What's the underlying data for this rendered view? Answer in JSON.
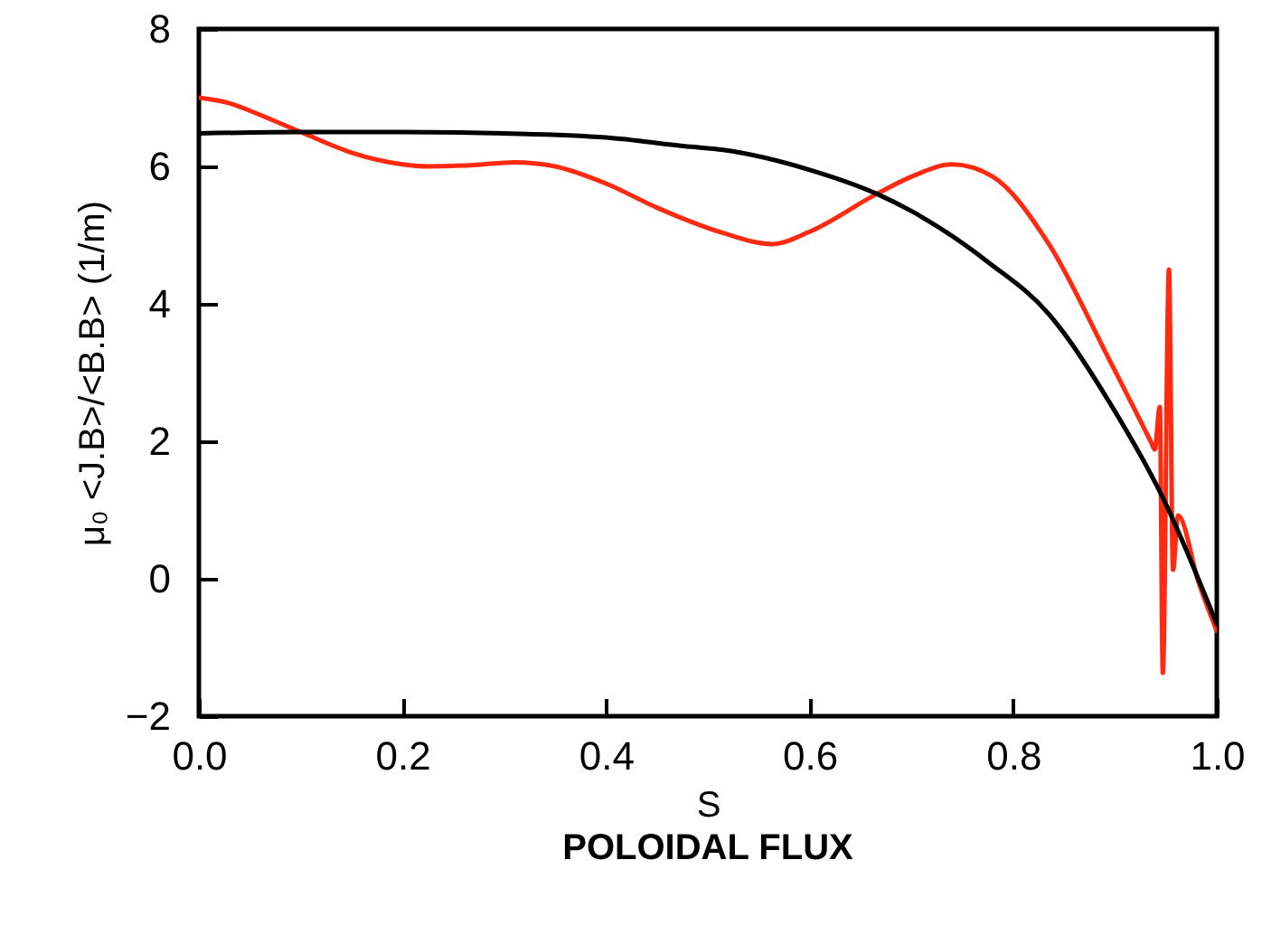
{
  "chart_data": {
    "type": "line",
    "xlabel": "S",
    "ylabel": "μ₀ <J.B>/<B.B> (1/m)",
    "annotations": [
      "POLOIDAL FLUX"
    ],
    "xlim": [
      0,
      1
    ],
    "xticks": [
      {
        "value": 0,
        "label": "0.0"
      },
      0.2,
      0.4,
      0.6,
      0.8,
      {
        "value": 1,
        "label": "1.0"
      }
    ],
    "ylim": [
      -2,
      8
    ],
    "yticks": [
      {
        "value": -2,
        "label": "−2"
      },
      0,
      2,
      4,
      6,
      8
    ],
    "grid": false,
    "line_style": "solid",
    "series": [
      {
        "color": "#ff2a10",
        "x": [
          0,
          0.03,
          0.06,
          0.1,
          0.15,
          0.2,
          0.225,
          0.27,
          0.31,
          0.35,
          0.4,
          0.45,
          0.515,
          0.563,
          0.6,
          0.666,
          0.7,
          0.74,
          0.78,
          0.835,
          0.894,
          0.936,
          0.939,
          0.944,
          0.947,
          0.953,
          0.957,
          0.962,
          0.982,
          1.0
        ],
        "values": [
          7.0,
          6.92,
          6.75,
          6.5,
          6.2,
          6.03,
          6.0,
          6.02,
          6.06,
          6.0,
          5.75,
          5.4,
          5.03,
          4.87,
          5.05,
          5.6,
          5.85,
          6.03,
          5.85,
          4.87,
          3.2,
          1.97,
          1.88,
          2.5,
          -1.37,
          4.5,
          0.13,
          0.92,
          -0.05,
          -0.76
        ]
      },
      {
        "color": "#000000",
        "x": [
          0,
          0.1,
          0.2,
          0.3,
          0.4,
          0.48,
          0.515,
          0.6,
          0.666,
          0.7,
          0.776,
          0.835,
          0.847,
          0.894,
          0.947,
          1.0
        ],
        "values": [
          6.48,
          6.5,
          6.5,
          6.48,
          6.42,
          6.29,
          6.24,
          5.95,
          5.6,
          5.35,
          4.6,
          3.85,
          3.63,
          2.58,
          1.18,
          -0.66
        ]
      }
    ]
  }
}
